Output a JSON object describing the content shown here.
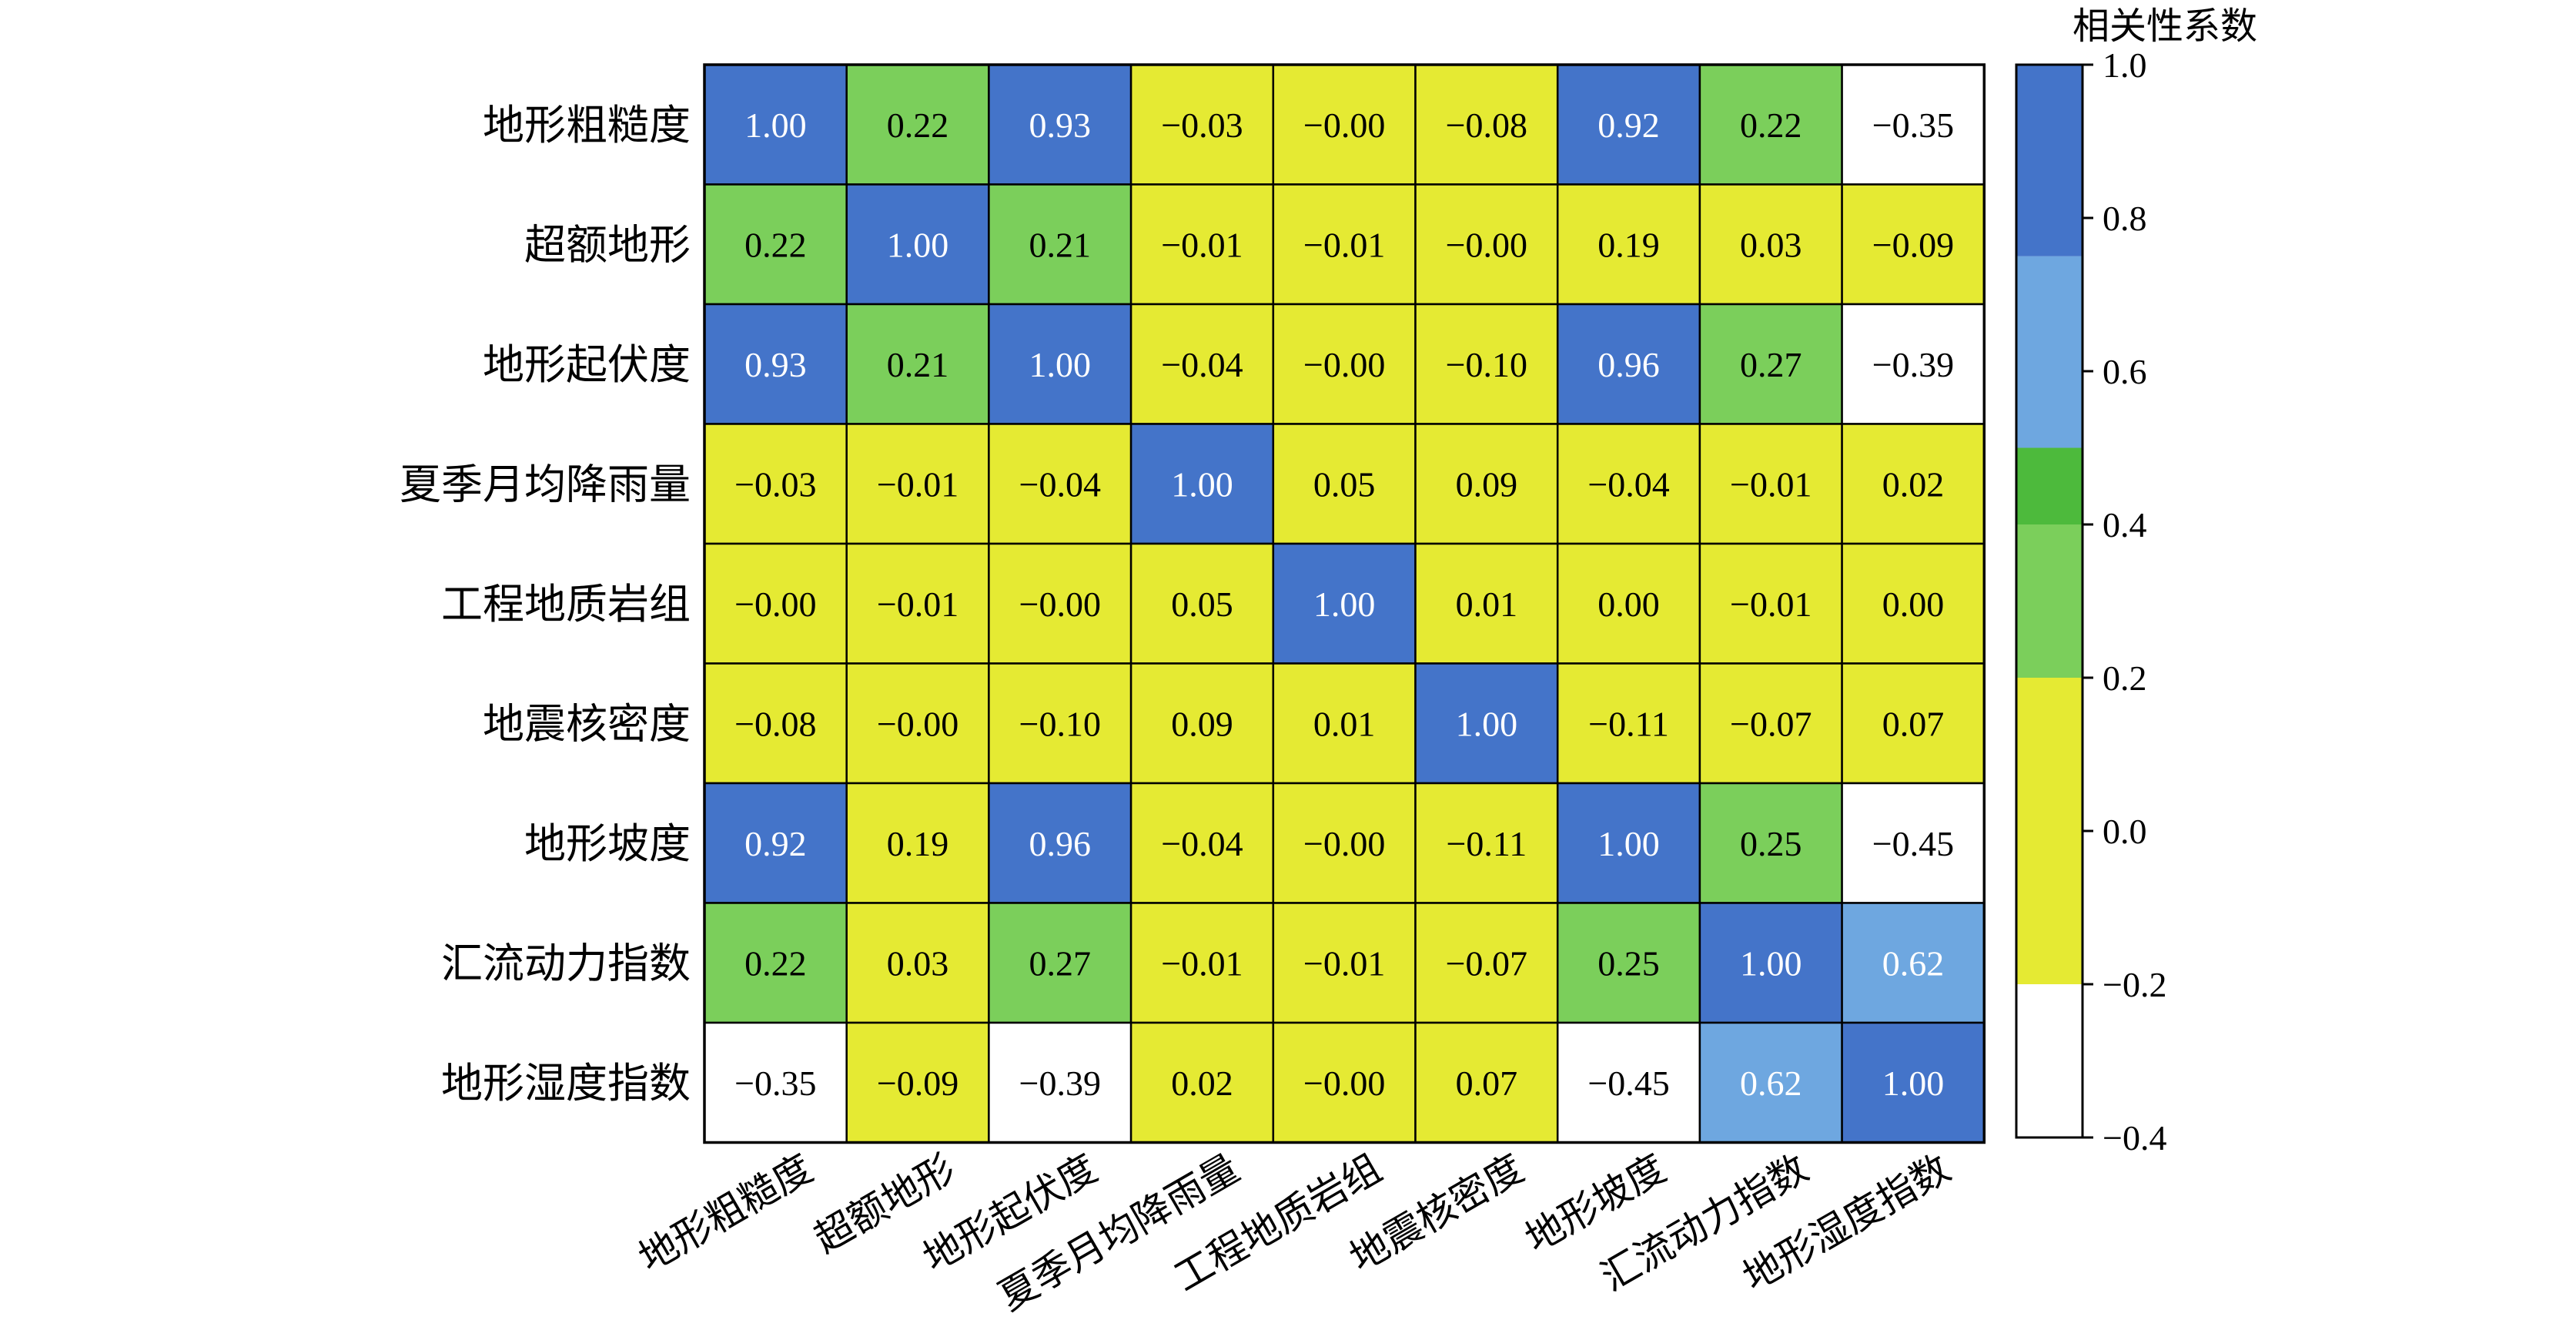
{
  "chart_data": {
    "type": "heatmap",
    "row_labels": [
      "地形粗糙度",
      "超额地形",
      "地形起伏度",
      "夏季月均降雨量",
      "工程地质岩组",
      "地震核密度",
      "地形坡度",
      "汇流动力指数",
      "地形湿度指数"
    ],
    "col_labels": [
      "地形粗糙度",
      "超额地形",
      "地形起伏度",
      "夏季月均降雨量",
      "工程地质岩组",
      "地震核密度",
      "地形坡度",
      "汇流动力指数",
      "地形湿度指数"
    ],
    "values": [
      [
        "1.00",
        "0.22",
        "0.93",
        "−0.03",
        "−0.00",
        "−0.08",
        "0.92",
        "0.22",
        "−0.35"
      ],
      [
        "0.22",
        "1.00",
        "0.21",
        "−0.01",
        "−0.01",
        "−0.00",
        "0.19",
        "0.03",
        "−0.09"
      ],
      [
        "0.93",
        "0.21",
        "1.00",
        "−0.04",
        "−0.00",
        "−0.10",
        "0.96",
        "0.27",
        "−0.39"
      ],
      [
        "−0.03",
        "−0.01",
        "−0.04",
        "1.00",
        "0.05",
        "0.09",
        "−0.04",
        "−0.01",
        "0.02"
      ],
      [
        "−0.00",
        "−0.01",
        "−0.00",
        "0.05",
        "1.00",
        "0.01",
        "0.00",
        "−0.01",
        "0.00"
      ],
      [
        "−0.08",
        "−0.00",
        "−0.10",
        "0.09",
        "0.01",
        "1.00",
        "−0.11",
        "−0.07",
        "0.07"
      ],
      [
        "0.92",
        "0.19",
        "0.96",
        "−0.04",
        "−0.00",
        "−0.11",
        "1.00",
        "0.25",
        "−0.45"
      ],
      [
        "0.22",
        "0.03",
        "0.27",
        "−0.01",
        "−0.01",
        "−0.07",
        "0.25",
        "1.00",
        "0.62"
      ],
      [
        "−0.35",
        "−0.09",
        "−0.39",
        "0.02",
        "−0.00",
        "0.07",
        "−0.45",
        "0.62",
        "1.00"
      ]
    ],
    "colorbar": {
      "title": "相关性系数",
      "range": [
        -0.4,
        1.0
      ],
      "ticks": [
        1.0,
        0.8,
        0.6,
        0.4,
        0.2,
        0.0,
        -0.2,
        -0.4
      ],
      "tick_labels": [
        "1.0",
        "0.8",
        "0.6",
        "0.4",
        "0.2",
        "0.0",
        "−0.2",
        "−0.4"
      ],
      "bins": [
        {
          "from": -0.4,
          "to": -0.2,
          "color": "#ffffff"
        },
        {
          "from": -0.2,
          "to": 0.0,
          "color": "#e5ea33"
        },
        {
          "from": 0.0,
          "to": 0.2,
          "color": "#e5ea33"
        },
        {
          "from": 0.2,
          "to": 0.4,
          "color": "#7bcf5b"
        },
        {
          "from": 0.4,
          "to": 0.5,
          "color": "#4dba3c"
        },
        {
          "from": 0.5,
          "to": 0.75,
          "color": "#6ea7e0"
        },
        {
          "from": 0.75,
          "to": 1.0,
          "color": "#4474c9"
        }
      ]
    },
    "colors": {
      "white": "#ffffff",
      "yellow": "#e5ea33",
      "light_green": "#7bcf5b",
      "green": "#4dba3c",
      "light_blue": "#6ea7e0",
      "blue": "#4474c9",
      "grid": "#000000"
    }
  }
}
